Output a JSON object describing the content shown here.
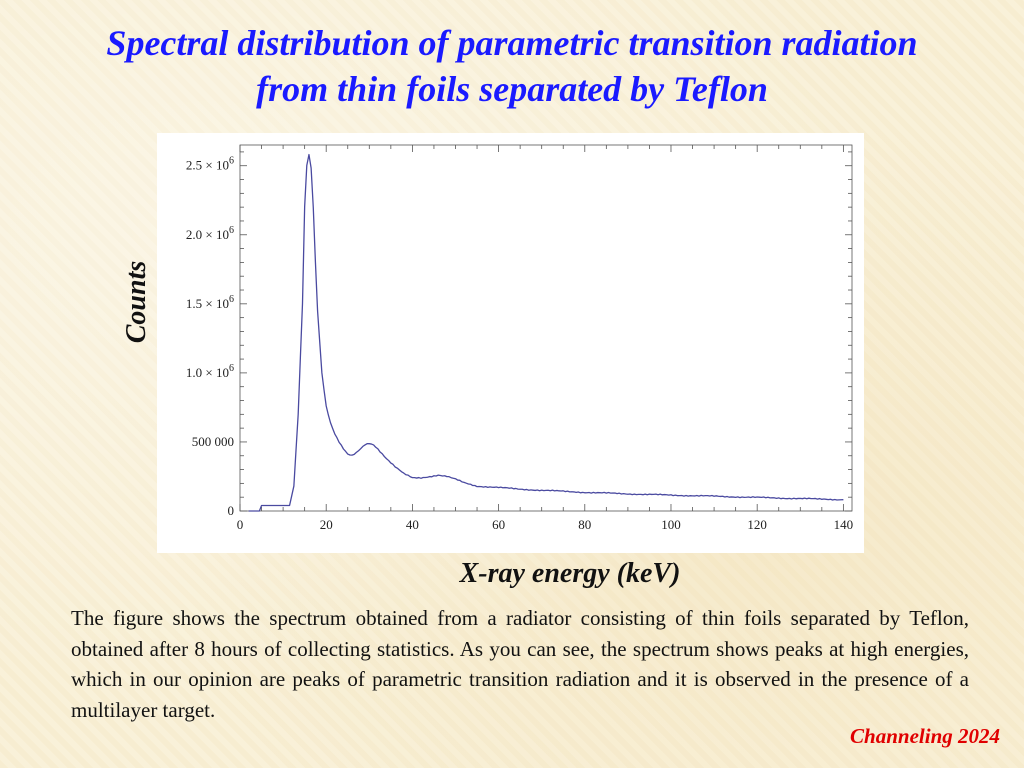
{
  "slide": {
    "title_line1": "Spectral distribution of parametric transition radiation",
    "title_line2": "from thin foils separated by Teflon",
    "description": "The figure shows the spectrum obtained from a radiator consisting of thin foils separated by Teflon, obtained after 8 hours of collecting statistics. As you can see, the spectrum shows peaks at high energies, which in our opinion are peaks of parametric transition radiation and it is observed in the presence of a multilayer target.",
    "footer": "Channeling 2024"
  },
  "colors": {
    "title": "#1a1aff",
    "footer": "#e00000",
    "series": "#4a4aa0",
    "background": "#f9f0d6"
  },
  "chart_data": {
    "type": "line",
    "title": "",
    "xlabel": "X-ray energy (keV)",
    "ylabel": "Counts",
    "xlim": [
      0,
      142
    ],
    "ylim": [
      0,
      2650000
    ],
    "grid": false,
    "x_ticks": [
      0,
      20,
      40,
      60,
      80,
      100,
      120,
      140
    ],
    "x_tick_labels": [
      "0",
      "20",
      "40",
      "60",
      "80",
      "100",
      "120",
      "140"
    ],
    "y_ticks": [
      0,
      500000,
      1000000,
      1500000,
      2000000,
      2500000
    ],
    "y_tick_labels": [
      {
        "mantissa": "0",
        "exponent": ""
      },
      {
        "mantissa": "500 000",
        "exponent": ""
      },
      {
        "mantissa": "1.0 × 10",
        "exponent": "6"
      },
      {
        "mantissa": "1.5 × 10",
        "exponent": "6"
      },
      {
        "mantissa": "2.0 × 10",
        "exponent": "6"
      },
      {
        "mantissa": "2.5 × 10",
        "exponent": "6"
      }
    ],
    "series": [
      {
        "x": [
          2,
          4.5,
          5,
          11.5,
          12.5,
          13.5,
          14.5,
          15,
          15.5,
          16,
          16.5,
          17,
          17.5,
          18,
          19,
          20,
          21,
          22,
          23,
          24,
          25,
          26,
          27,
          28,
          29,
          30,
          31,
          32,
          34,
          36,
          38,
          40,
          42,
          44,
          46,
          48,
          50,
          52,
          55,
          60,
          65,
          70,
          80,
          90,
          100,
          110,
          120,
          130,
          140
        ],
        "y": [
          0,
          0,
          40000,
          40000,
          180000,
          700000,
          1500000,
          2200000,
          2500000,
          2580000,
          2480000,
          2200000,
          1800000,
          1450000,
          1000000,
          760000,
          640000,
          560000,
          500000,
          450000,
          410000,
          400000,
          420000,
          450000,
          480000,
          490000,
          480000,
          450000,
          380000,
          320000,
          270000,
          240000,
          240000,
          250000,
          260000,
          250000,
          230000,
          205000,
          180000,
          170000,
          158000,
          150000,
          135000,
          124000,
          115000,
          107000,
          98000,
          90000,
          82000
        ]
      }
    ]
  }
}
